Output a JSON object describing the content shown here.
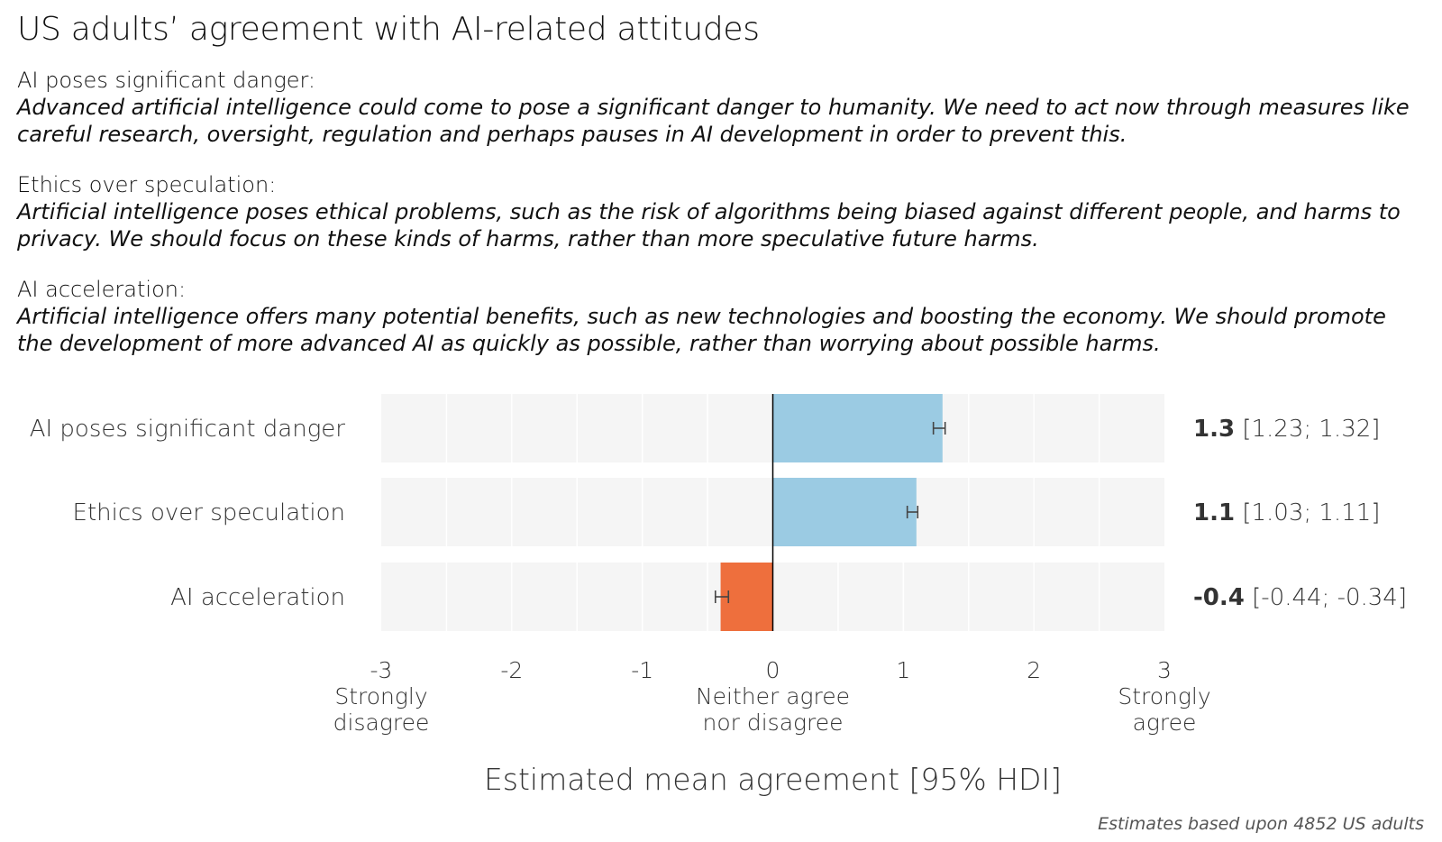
{
  "title": "US adults’ agreement with AI-related attitudes",
  "definitions": [
    {
      "name": "AI poses significant danger:",
      "text": "Advanced artificial intelligence could come to pose a significant danger to humanity. We need to act now through measures like careful research, oversight, regulation and perhaps pauses in AI development in order to prevent this."
    },
    {
      "name": "Ethics over speculation:",
      "text": "Artificial intelligence poses ethical problems, such as the risk of algorithms being biased against different people, and harms to privacy. We should focus on these kinds of harms, rather than more speculative future harms."
    },
    {
      "name": "AI acceleration:",
      "text": "Artificial intelligence offers many potential benefits, such as new technologies and boosting the economy. We should promote the development of more advanced AI as quickly as possible, rather than worrying about possible harms."
    }
  ],
  "chart_data": {
    "type": "bar",
    "orientation": "horizontal",
    "categories": [
      "AI poses significant danger",
      "Ethics over speculation",
      "AI acceleration"
    ],
    "values": [
      1.3,
      1.1,
      -0.4
    ],
    "value_labels": [
      "1.3",
      "1.1",
      "-0.4"
    ],
    "ci_low": [
      1.23,
      1.03,
      -0.44
    ],
    "ci_high": [
      1.32,
      1.11,
      -0.34
    ],
    "ci_labels": [
      "[1.23; 1.32]",
      "[1.03; 1.11]",
      "[-0.44; -0.34]"
    ],
    "xlim": [
      -3,
      3
    ],
    "x_ticks": [
      -3,
      -2,
      -1,
      0,
      1,
      2,
      3
    ],
    "x_tick_labels": [
      "-3",
      "-2",
      "-1",
      "0",
      "1",
      "2",
      "3"
    ],
    "x_tick_sublabels": [
      {
        "at": -3,
        "lines": [
          "Strongly",
          "disagree"
        ]
      },
      {
        "at": 0,
        "lines": [
          "Neither agree",
          "nor disagree"
        ]
      },
      {
        "at": 3,
        "lines": [
          "Strongly",
          "agree"
        ]
      }
    ],
    "xlabel": "Estimated mean agreement [95% HDI]",
    "footnote": "Estimates based upon 4852 US adults",
    "colors": {
      "positive": "#9bcbe3",
      "negative": "#ee6f3d",
      "panel": "#f5f5f5",
      "grid": "#ffffff"
    },
    "grid": true
  }
}
